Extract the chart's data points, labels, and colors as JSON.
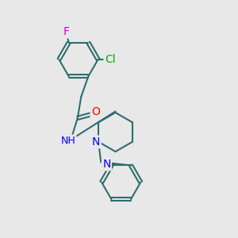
{
  "bg_color": "#e8e8e8",
  "bond_color": "#2d6e6e",
  "bond_width": 1.5,
  "atom_colors": {
    "F": "#cc00cc",
    "Cl": "#00aa00",
    "O": "#ff0000",
    "N": "#0000ff",
    "H": "#777777",
    "C": "#000000"
  },
  "font_size": 9,
  "fig_size": [
    3.0,
    3.0
  ],
  "dpi": 100
}
